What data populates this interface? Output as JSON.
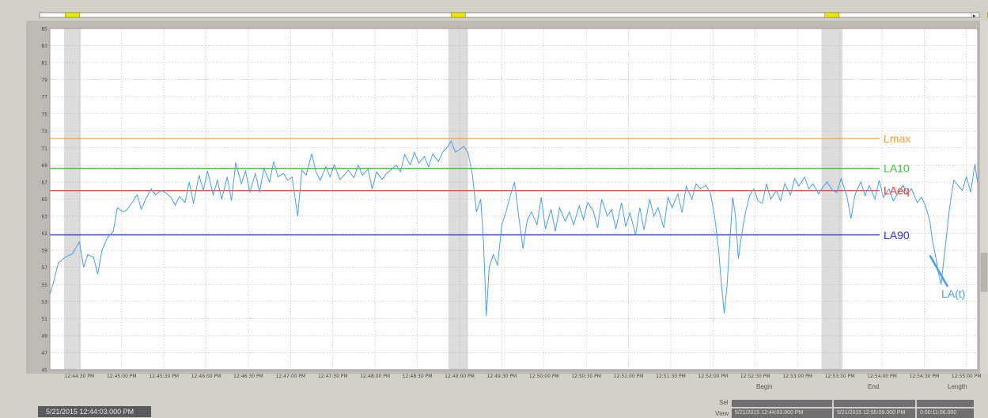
{
  "chart_data": {
    "type": "line",
    "y_range": [
      45,
      85
    ],
    "y_ticks": [
      "85",
      "83",
      "81",
      "79",
      "77",
      "75",
      "73",
      "71",
      "69",
      "67",
      "65",
      "63",
      "61",
      "59",
      "57",
      "55",
      "53",
      "51",
      "49",
      "47",
      "45"
    ],
    "x_ticks": [
      "12:44:30 PM",
      "12:45:00 PM",
      "12:45:30 PM",
      "12:46:00 PM",
      "12:46:30 PM",
      "12:47:00 PM",
      "12:47:30 PM",
      "12:48:00 PM",
      "12:48:30 PM",
      "12:49:00 PM",
      "12:49:30 PM",
      "12:50:00 PM",
      "12:50:30 PM",
      "12:51:00 PM",
      "12:51:30 PM",
      "12:52:00 PM",
      "12:52:30 PM",
      "12:53:00 PM",
      "12:53:30 PM",
      "12:54:00 PM",
      "12:54:30 PM",
      "12:55:00 PM"
    ],
    "x_range_seconds_after_12_44_00": [
      9,
      668
    ],
    "grid": true,
    "reference_lines": [
      {
        "name": "Lmax",
        "value": 72.1,
        "color": "#f7a040"
      },
      {
        "name": "LA10",
        "value": 68.6,
        "color": "#40c040"
      },
      {
        "name": "LAeq",
        "value": 66.0,
        "color": "#ff3030"
      },
      {
        "name": "LA90",
        "value": 60.8,
        "color": "#3030e0"
      }
    ],
    "series": [
      {
        "name": "LA(t)",
        "color": "#4a9ef0",
        "values": [
          [
            9,
            53.8
          ],
          [
            12,
            55.5
          ],
          [
            15,
            57.5
          ],
          [
            20,
            58.2
          ],
          [
            25,
            58.6
          ],
          [
            30,
            60.0
          ],
          [
            33,
            57.0
          ],
          [
            36,
            58.5
          ],
          [
            40,
            58.2
          ],
          [
            43,
            56.2
          ],
          [
            46,
            59.0
          ],
          [
            50,
            60.5
          ],
          [
            54,
            61.2
          ],
          [
            57,
            64.0
          ],
          [
            61,
            63.5
          ],
          [
            64,
            63.8
          ],
          [
            67,
            64.5
          ],
          [
            71,
            65.5
          ],
          [
            74,
            63.8
          ],
          [
            77,
            65.0
          ],
          [
            81,
            66.2
          ],
          [
            84,
            65.5
          ],
          [
            88,
            66.0
          ],
          [
            91,
            65.8
          ],
          [
            95,
            65.2
          ],
          [
            98,
            64.3
          ],
          [
            101,
            65.3
          ],
          [
            105,
            64.6
          ],
          [
            108,
            67.0
          ],
          [
            111,
            64.5
          ],
          [
            115,
            67.8
          ],
          [
            118,
            66.0
          ],
          [
            121,
            68.3
          ],
          [
            125,
            65.5
          ],
          [
            128,
            67.2
          ],
          [
            131,
            65.0
          ],
          [
            135,
            67.6
          ],
          [
            138,
            64.8
          ],
          [
            141,
            69.3
          ],
          [
            145,
            66.8
          ],
          [
            148,
            68.3
          ],
          [
            151,
            65.8
          ],
          [
            155,
            68.0
          ],
          [
            158,
            65.8
          ],
          [
            161,
            68.6
          ],
          [
            165,
            67.0
          ],
          [
            168,
            69.4
          ],
          [
            171,
            67.6
          ],
          [
            175,
            68.0
          ],
          [
            178,
            67.2
          ],
          [
            181,
            67.6
          ],
          [
            185,
            63.0
          ],
          [
            188,
            68.4
          ],
          [
            191,
            67.8
          ],
          [
            195,
            70.3
          ],
          [
            198,
            68.2
          ],
          [
            201,
            67.2
          ],
          [
            205,
            68.8
          ],
          [
            208,
            67.6
          ],
          [
            211,
            69.0
          ],
          [
            215,
            67.3
          ],
          [
            218,
            67.8
          ],
          [
            221,
            68.4
          ],
          [
            225,
            67.5
          ],
          [
            228,
            69.0
          ],
          [
            231,
            67.8
          ],
          [
            235,
            68.5
          ],
          [
            238,
            66.2
          ],
          [
            241,
            68.2
          ],
          [
            245,
            67.3
          ],
          [
            248,
            68.0
          ],
          [
            251,
            68.4
          ],
          [
            255,
            69.0
          ],
          [
            258,
            68.2
          ],
          [
            261,
            70.2
          ],
          [
            265,
            69.0
          ],
          [
            268,
            70.5
          ],
          [
            271,
            69.2
          ],
          [
            275,
            70.0
          ],
          [
            278,
            68.8
          ],
          [
            281,
            70.3
          ],
          [
            285,
            69.4
          ],
          [
            288,
            70.5
          ],
          [
            291,
            71.0
          ],
          [
            294,
            71.8
          ],
          [
            297,
            70.5
          ],
          [
            300,
            70.8
          ],
          [
            303,
            71.2
          ],
          [
            306,
            70.4
          ],
          [
            309,
            68.0
          ],
          [
            312,
            63.5
          ],
          [
            315,
            65.0
          ],
          [
            317,
            60.0
          ],
          [
            319,
            51.3
          ],
          [
            321,
            57.0
          ],
          [
            324,
            58.5
          ],
          [
            327,
            57.2
          ],
          [
            330,
            62.0
          ],
          [
            333,
            63.5
          ],
          [
            336,
            65.4
          ],
          [
            339,
            67.0
          ],
          [
            342,
            63.0
          ],
          [
            345,
            59.2
          ],
          [
            348,
            62.5
          ],
          [
            351,
            63.5
          ],
          [
            355,
            62.0
          ],
          [
            358,
            65.2
          ],
          [
            361,
            61.5
          ],
          [
            365,
            63.8
          ],
          [
            368,
            61.2
          ],
          [
            371,
            64.0
          ],
          [
            375,
            62.4
          ],
          [
            378,
            63.5
          ],
          [
            381,
            62.0
          ],
          [
            385,
            64.2
          ],
          [
            388,
            62.6
          ],
          [
            391,
            64.6
          ],
          [
            395,
            63.6
          ],
          [
            398,
            61.6
          ],
          [
            401,
            65.0
          ],
          [
            405,
            63.0
          ],
          [
            408,
            63.8
          ],
          [
            411,
            61.5
          ],
          [
            415,
            64.6
          ],
          [
            418,
            61.8
          ],
          [
            421,
            63.4
          ],
          [
            425,
            60.8
          ],
          [
            428,
            64.0
          ],
          [
            431,
            61.4
          ],
          [
            435,
            65.0
          ],
          [
            438,
            63.0
          ],
          [
            441,
            64.0
          ],
          [
            445,
            61.6
          ],
          [
            448,
            65.2
          ],
          [
            451,
            64.0
          ],
          [
            455,
            65.6
          ],
          [
            458,
            63.4
          ],
          [
            461,
            66.5
          ],
          [
            465,
            65.0
          ],
          [
            468,
            66.8
          ],
          [
            471,
            66.2
          ],
          [
            475,
            66.6
          ],
          [
            478,
            65.8
          ],
          [
            481,
            63.2
          ],
          [
            484,
            59.0
          ],
          [
            486,
            55.0
          ],
          [
            488,
            51.6
          ],
          [
            490,
            55.0
          ],
          [
            492,
            60.2
          ],
          [
            494,
            65.2
          ],
          [
            496,
            63.0
          ],
          [
            498,
            58.0
          ],
          [
            500,
            60.5
          ],
          [
            503,
            63.4
          ],
          [
            506,
            65.4
          ],
          [
            509,
            66.2
          ],
          [
            512,
            64.8
          ],
          [
            515,
            64.5
          ],
          [
            518,
            66.8
          ],
          [
            521,
            65.0
          ],
          [
            525,
            66.0
          ],
          [
            528,
            64.8
          ],
          [
            531,
            66.8
          ],
          [
            535,
            65.5
          ],
          [
            538,
            67.4
          ],
          [
            541,
            66.5
          ],
          [
            545,
            67.6
          ],
          [
            548,
            66.2
          ],
          [
            551,
            66.8
          ],
          [
            555,
            65.6
          ],
          [
            558,
            66.4
          ],
          [
            561,
            67.0
          ],
          [
            565,
            66.0
          ],
          [
            568,
            65.8
          ],
          [
            571,
            67.4
          ],
          [
            575,
            65.4
          ],
          [
            578,
            62.7
          ],
          [
            581,
            65.6
          ],
          [
            585,
            67.0
          ],
          [
            588,
            65.4
          ],
          [
            591,
            66.6
          ],
          [
            595,
            65.0
          ],
          [
            598,
            67.2
          ],
          [
            601,
            65.2
          ],
          [
            605,
            66.2
          ],
          [
            608,
            64.8
          ],
          [
            611,
            65.6
          ],
          [
            615,
            66.6
          ],
          [
            618,
            65.6
          ],
          [
            621,
            66.2
          ],
          [
            625,
            64.6
          ],
          [
            628,
            65.2
          ],
          [
            631,
            64.2
          ],
          [
            634,
            62.4
          ],
          [
            636,
            60.0
          ],
          [
            638,
            58.4
          ],
          [
            640,
            56.4
          ],
          [
            642,
            55.0
          ],
          [
            645,
            59.5
          ],
          [
            648,
            64.0
          ],
          [
            651,
            67.2
          ],
          [
            654,
            66.6
          ],
          [
            657,
            66.0
          ],
          [
            660,
            67.6
          ],
          [
            663,
            65.8
          ],
          [
            666,
            69.1
          ],
          [
            668,
            66.8
          ]
        ]
      }
    ],
    "shaded_bands_seconds": [
      [
        19,
        31
      ],
      [
        292,
        306
      ],
      [
        557,
        572
      ],
      [
        675,
        685
      ]
    ],
    "labels": {
      "lmax": "Lmax",
      "la10": "LA10",
      "laeq": "LAeq",
      "la90": "LA90",
      "lat": "LA(t)"
    }
  },
  "range_panel": {
    "sel_label": "Sel",
    "view_label": "View",
    "begin_header": "Begin",
    "end_header": "End",
    "length_header": "Length",
    "view_begin": "5/21/2015 12:44:03.000 PM",
    "view_end": "5/21/2015 12:55:09.000 PM",
    "view_length": "0:00:11:06.000"
  },
  "cursor_time": "5/21/2015 12:44:03.000 PM",
  "scrollbar": {
    "arrow": "▸"
  }
}
